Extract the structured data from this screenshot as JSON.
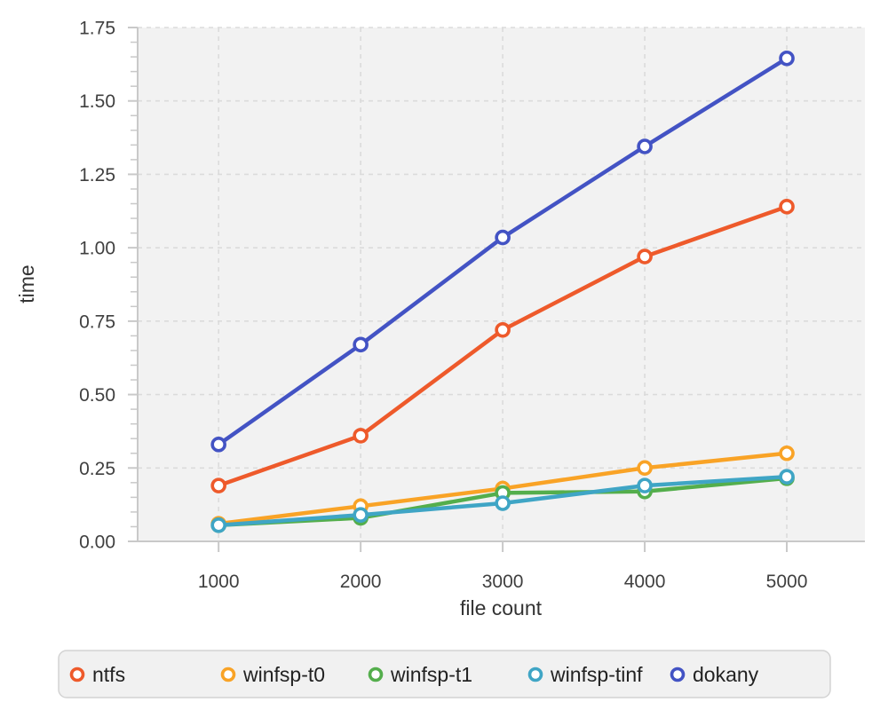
{
  "chart_data": {
    "type": "line",
    "title": "",
    "xlabel": "file count",
    "ylabel": "time",
    "x": [
      1000,
      2000,
      3000,
      4000,
      5000
    ],
    "series": [
      {
        "name": "ntfs",
        "color": "#EE5A2B",
        "values": [
          0.19,
          0.36,
          0.72,
          0.97,
          1.14
        ]
      },
      {
        "name": "winfsp-t0",
        "color": "#F9A326",
        "values": [
          0.06,
          0.12,
          0.18,
          0.25,
          0.3
        ]
      },
      {
        "name": "winfsp-t1",
        "color": "#54AE4C",
        "values": [
          0.055,
          0.08,
          0.165,
          0.17,
          0.215
        ]
      },
      {
        "name": "winfsp-tinf",
        "color": "#3FA5C5",
        "values": [
          0.055,
          0.09,
          0.13,
          0.19,
          0.22
        ]
      },
      {
        "name": "dokany",
        "color": "#4353C4",
        "values": [
          0.33,
          0.67,
          1.035,
          1.345,
          1.645
        ]
      }
    ],
    "xticks": [
      1000,
      2000,
      3000,
      4000,
      5000
    ],
    "xtick_labels": [
      "1000",
      "2000",
      "3000",
      "4000",
      "5000"
    ],
    "yticks": [
      0,
      0.25,
      0.5,
      0.75,
      1.0,
      1.25,
      1.5,
      1.75
    ],
    "ytick_labels": [
      "0.00",
      "0.25",
      "0.50",
      "0.75",
      "1.00",
      "1.25",
      "1.50",
      "1.75"
    ],
    "y_minor_step": 0.05,
    "xlim": [
      430,
      5550
    ],
    "ylim": [
      0,
      1.75
    ],
    "grid": true,
    "legend_position": "bottom",
    "colors": {
      "plot_background": "#F2F2F2",
      "figure_background": "#FFFFFF",
      "grid": "#DBDBDB",
      "axis": "#C9C9C9",
      "tick_label": "#3F3F3F",
      "axis_title": "#333333",
      "legend_background": "#F1F1F1",
      "legend_border": "#D3D3D3",
      "legend_text": "#222222",
      "marker_fill": "#FFFFFF"
    }
  }
}
